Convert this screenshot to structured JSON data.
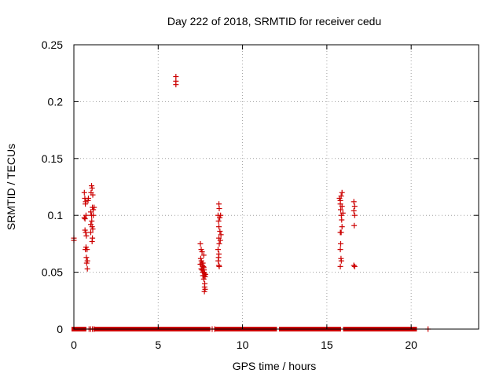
{
  "chart_data": {
    "type": "scatter",
    "title": "Day 222 of 2018, SRMTID for receiver cedu",
    "xlabel": "GPS time / hours",
    "ylabel": "SRMTID / TECUs",
    "xlim": [
      0,
      24
    ],
    "ylim": [
      0,
      0.25
    ],
    "xticks": [
      0,
      5,
      10,
      15,
      20
    ],
    "xtick_labels": [
      "0",
      "5",
      "10",
      "15",
      "20"
    ],
    "yticks": [
      0,
      0.05,
      0.1,
      0.15,
      0.2,
      0.25
    ],
    "ytick_labels": [
      "0",
      "0.05",
      "0.1",
      "0.15",
      "0.2",
      "0.25"
    ],
    "grid": true,
    "marker": "+",
    "color": "#cc0000",
    "series": [
      {
        "name": "SRMTID",
        "points": [
          [
            0.0,
            0.08
          ],
          [
            0.0,
            0.078
          ],
          [
            0.62,
            0.12
          ],
          [
            0.65,
            0.115
          ],
          [
            0.68,
            0.11
          ],
          [
            0.7,
            0.112
          ],
          [
            0.72,
            0.1
          ],
          [
            0.62,
            0.098
          ],
          [
            0.66,
            0.097
          ],
          [
            0.7,
            0.085
          ],
          [
            0.74,
            0.082
          ],
          [
            0.66,
            0.087
          ],
          [
            0.72,
            0.072
          ],
          [
            0.78,
            0.07
          ],
          [
            0.68,
            0.07
          ],
          [
            0.74,
            0.063
          ],
          [
            0.8,
            0.06
          ],
          [
            0.76,
            0.058
          ],
          [
            0.8,
            0.053
          ],
          [
            0.86,
            0.115
          ],
          [
            0.84,
            0.113
          ],
          [
            1.05,
            0.126
          ],
          [
            1.08,
            0.124
          ],
          [
            1.02,
            0.12
          ],
          [
            1.12,
            0.118
          ],
          [
            1.1,
            0.107
          ],
          [
            1.2,
            0.107
          ],
          [
            1.15,
            0.105
          ],
          [
            1.0,
            0.103
          ],
          [
            1.05,
            0.1
          ],
          [
            1.15,
            0.1
          ],
          [
            1.06,
            0.095
          ],
          [
            1.0,
            0.092
          ],
          [
            1.08,
            0.09
          ],
          [
            1.12,
            0.088
          ],
          [
            1.0,
            0.085
          ],
          [
            1.1,
            0.08
          ],
          [
            1.08,
            0.077
          ],
          [
            6.05,
            0.222
          ],
          [
            6.05,
            0.218
          ],
          [
            6.05,
            0.215
          ],
          [
            7.5,
            0.075
          ],
          [
            7.55,
            0.07
          ],
          [
            7.6,
            0.068
          ],
          [
            7.7,
            0.065
          ],
          [
            7.52,
            0.062
          ],
          [
            7.56,
            0.06
          ],
          [
            7.6,
            0.058
          ],
          [
            7.65,
            0.058
          ],
          [
            7.5,
            0.057
          ],
          [
            7.62,
            0.056
          ],
          [
            7.68,
            0.055
          ],
          [
            7.7,
            0.054
          ],
          [
            7.55,
            0.053
          ],
          [
            7.72,
            0.052
          ],
          [
            7.6,
            0.052
          ],
          [
            7.64,
            0.05
          ],
          [
            7.7,
            0.05
          ],
          [
            7.75,
            0.049
          ],
          [
            7.8,
            0.048
          ],
          [
            7.65,
            0.047
          ],
          [
            7.72,
            0.047
          ],
          [
            7.78,
            0.046
          ],
          [
            7.7,
            0.044
          ],
          [
            7.76,
            0.04
          ],
          [
            7.75,
            0.037
          ],
          [
            7.78,
            0.035
          ],
          [
            7.74,
            0.033
          ],
          [
            8.6,
            0.11
          ],
          [
            8.62,
            0.106
          ],
          [
            8.55,
            0.1
          ],
          [
            8.65,
            0.098
          ],
          [
            8.7,
            0.1
          ],
          [
            8.58,
            0.095
          ],
          [
            8.6,
            0.09
          ],
          [
            8.66,
            0.086
          ],
          [
            8.72,
            0.083
          ],
          [
            8.6,
            0.08
          ],
          [
            8.68,
            0.078
          ],
          [
            8.62,
            0.075
          ],
          [
            8.55,
            0.07
          ],
          [
            8.6,
            0.066
          ],
          [
            8.58,
            0.063
          ],
          [
            8.56,
            0.06
          ],
          [
            8.6,
            0.056
          ],
          [
            8.62,
            0.055
          ],
          [
            15.75,
            0.115
          ],
          [
            15.8,
            0.113
          ],
          [
            15.9,
            0.12
          ],
          [
            15.85,
            0.117
          ],
          [
            15.8,
            0.11
          ],
          [
            15.9,
            0.108
          ],
          [
            15.82,
            0.105
          ],
          [
            15.95,
            0.102
          ],
          [
            15.86,
            0.1
          ],
          [
            15.88,
            0.096
          ],
          [
            15.8,
            0.085
          ],
          [
            15.85,
            0.085
          ],
          [
            15.9,
            0.09
          ],
          [
            15.82,
            0.075
          ],
          [
            15.8,
            0.07
          ],
          [
            15.84,
            0.062
          ],
          [
            15.86,
            0.06
          ],
          [
            15.8,
            0.055
          ],
          [
            16.6,
            0.112
          ],
          [
            16.65,
            0.108
          ],
          [
            16.6,
            0.104
          ],
          [
            16.65,
            0.1
          ],
          [
            16.62,
            0.091
          ],
          [
            16.6,
            0.056
          ],
          [
            16.65,
            0.055
          ]
        ]
      }
    ],
    "zero_runs": [
      [
        0.0,
        0.6
      ],
      [
        1.3,
        7.95
      ],
      [
        8.5,
        11.9
      ],
      [
        12.3,
        15.7
      ],
      [
        16.1,
        20.2
      ]
    ],
    "zero_points": [
      0.9,
      1.0,
      1.1,
      1.2,
      8.2,
      8.35,
      21.0
    ]
  }
}
